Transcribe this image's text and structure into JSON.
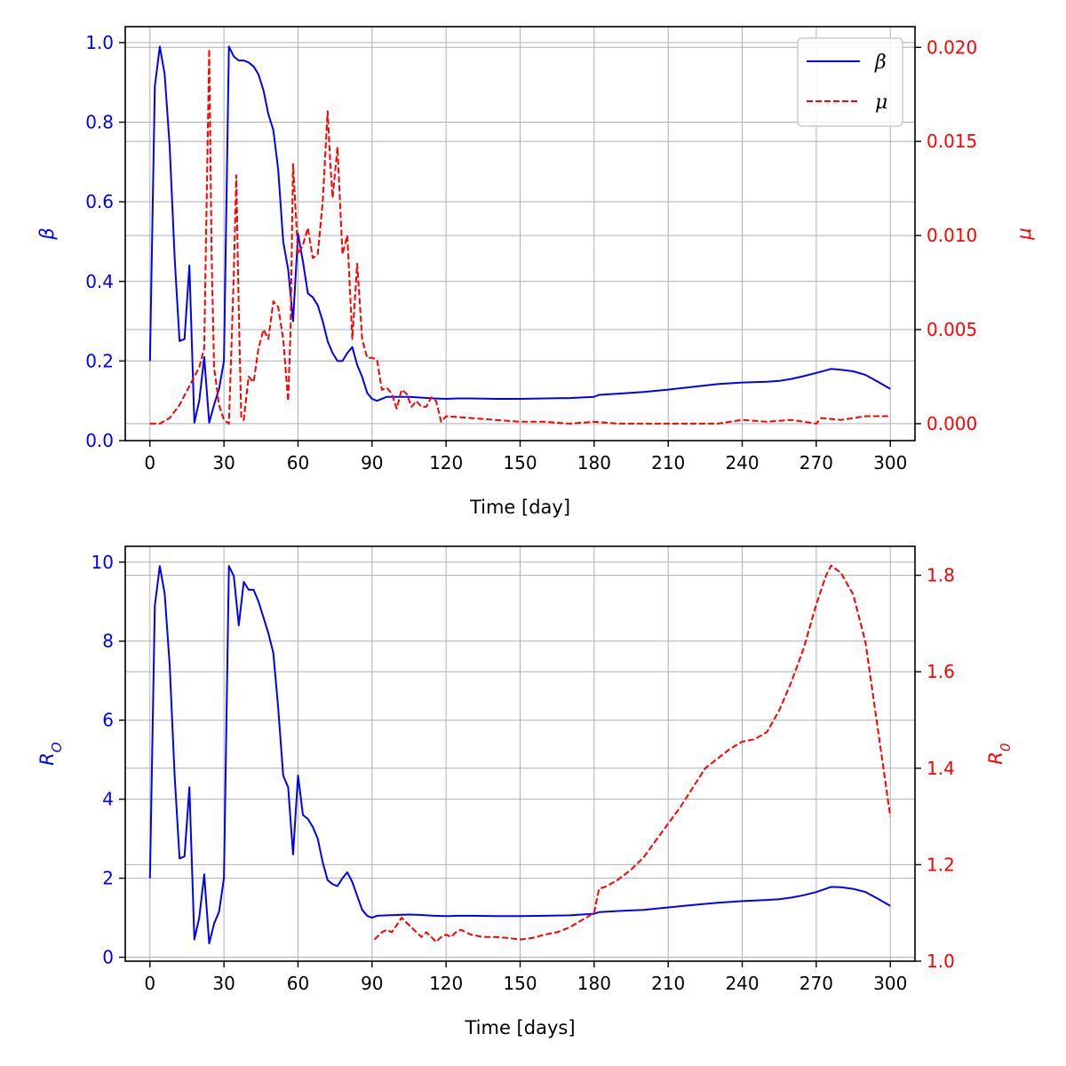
{
  "colors": {
    "left": "#0000ff",
    "right": "#ff0000",
    "grid": "#b0b0b0",
    "axis": "#000000"
  },
  "chart_data": [
    {
      "type": "line",
      "xlabel": "Time [day]",
      "ylabel_left": "β",
      "ylabel_right": "μ",
      "xlim": [
        -10,
        310
      ],
      "xticks": [
        0,
        30,
        60,
        90,
        120,
        150,
        180,
        210,
        240,
        270,
        300
      ],
      "ylim_left": [
        0,
        1.04
      ],
      "yticks_left": [
        0.0,
        0.2,
        0.4,
        0.6,
        0.8,
        1.0
      ],
      "ylim_right": [
        -0.0009,
        0.0211
      ],
      "yticks_right": [
        0.0,
        0.005,
        0.01,
        0.015,
        0.02
      ],
      "grid": true,
      "legend_position": "top-right",
      "series": [
        {
          "name": "β",
          "axis": "left",
          "style": "solid",
          "x": [
            0,
            2,
            4,
            6,
            8,
            10,
            12,
            14,
            16,
            18,
            20,
            22,
            24,
            26,
            28,
            30,
            32,
            34,
            36,
            38,
            40,
            42,
            44,
            46,
            48,
            50,
            52,
            54,
            56,
            58,
            60,
            62,
            64,
            66,
            68,
            70,
            72,
            74,
            76,
            78,
            80,
            82,
            84,
            86,
            88,
            90,
            92,
            96,
            100,
            105,
            110,
            115,
            120,
            125,
            130,
            140,
            150,
            160,
            170,
            180,
            182,
            190,
            200,
            210,
            220,
            230,
            240,
            250,
            255,
            260,
            265,
            270,
            276,
            280,
            285,
            290,
            295,
            300
          ],
          "y": [
            0.2,
            0.89,
            0.99,
            0.92,
            0.74,
            0.46,
            0.25,
            0.255,
            0.44,
            0.045,
            0.1,
            0.21,
            0.045,
            0.09,
            0.13,
            0.2,
            0.99,
            0.965,
            0.955,
            0.955,
            0.95,
            0.94,
            0.92,
            0.88,
            0.82,
            0.78,
            0.68,
            0.5,
            0.43,
            0.3,
            0.52,
            0.45,
            0.37,
            0.36,
            0.34,
            0.3,
            0.25,
            0.22,
            0.2,
            0.2,
            0.22,
            0.235,
            0.19,
            0.16,
            0.12,
            0.105,
            0.1,
            0.11,
            0.11,
            0.11,
            0.108,
            0.106,
            0.105,
            0.106,
            0.106,
            0.105,
            0.105,
            0.106,
            0.107,
            0.11,
            0.115,
            0.118,
            0.122,
            0.128,
            0.135,
            0.142,
            0.146,
            0.148,
            0.15,
            0.155,
            0.162,
            0.17,
            0.18,
            0.178,
            0.174,
            0.165,
            0.148,
            0.13
          ]
        },
        {
          "name": "μ",
          "axis": "right",
          "style": "dashed",
          "x": [
            0,
            4,
            8,
            12,
            16,
            20,
            22,
            23,
            24,
            25,
            26,
            28,
            30,
            32,
            33,
            34,
            35,
            36,
            37,
            38,
            40,
            42,
            44,
            46,
            48,
            50,
            52,
            54,
            56,
            57,
            58,
            60,
            62,
            64,
            66,
            68,
            70,
            72,
            73,
            74,
            76,
            78,
            80,
            82,
            84,
            86,
            88,
            90,
            92,
            94,
            96,
            98,
            100,
            102,
            104,
            106,
            108,
            110,
            112,
            114,
            116,
            118,
            120,
            130,
            140,
            150,
            160,
            170,
            180,
            190,
            200,
            210,
            220,
            230,
            240,
            250,
            260,
            270,
            272,
            280,
            290,
            300
          ],
          "y": [
            0.0,
            0.0,
            0.0003,
            0.001,
            0.002,
            0.003,
            0.004,
            0.012,
            0.0199,
            0.009,
            0.003,
            0.001,
            0.0002,
            0.0,
            0.004,
            0.008,
            0.0132,
            0.006,
            0.0003,
            0.0002,
            0.0025,
            0.0022,
            0.004,
            0.005,
            0.0045,
            0.0065,
            0.0062,
            0.0045,
            0.0012,
            0.005,
            0.0138,
            0.009,
            0.0095,
            0.0104,
            0.0088,
            0.009,
            0.0118,
            0.0166,
            0.014,
            0.012,
            0.0147,
            0.009,
            0.01,
            0.0045,
            0.0085,
            0.0045,
            0.0035,
            0.0035,
            0.0034,
            0.0018,
            0.0019,
            0.0016,
            0.0008,
            0.0018,
            0.0016,
            0.0009,
            0.0012,
            0.0009,
            0.0009,
            0.0014,
            0.0012,
            0.0001,
            0.0004,
            0.0003,
            0.0002,
            0.0001,
            0.0001,
            0.0,
            0.0001,
            0.0,
            0.0,
            0.0,
            0.0,
            0.0,
            0.0002,
            0.0001,
            0.0002,
            0.0,
            0.0003,
            0.0002,
            0.0004,
            0.0004
          ]
        }
      ]
    },
    {
      "type": "line",
      "xlabel": "Time [days]",
      "ylabel_left": "R_O",
      "ylabel_right": "R_0",
      "xlim": [
        -10,
        310
      ],
      "xticks": [
        0,
        30,
        60,
        90,
        120,
        150,
        180,
        210,
        240,
        270,
        300
      ],
      "ylim_left": [
        -0.1,
        10.4
      ],
      "yticks_left": [
        0,
        2,
        4,
        6,
        8,
        10
      ],
      "ylim_right": [
        1.0,
        1.86
      ],
      "yticks_right": [
        1.0,
        1.2,
        1.4,
        1.6,
        1.8
      ],
      "grid": true,
      "series": [
        {
          "name": "R_O",
          "axis": "left",
          "style": "solid",
          "x": [
            0,
            2,
            4,
            6,
            8,
            10,
            12,
            14,
            16,
            18,
            20,
            22,
            24,
            26,
            28,
            30,
            32,
            34,
            36,
            38,
            40,
            42,
            44,
            46,
            48,
            50,
            52,
            54,
            56,
            58,
            60,
            62,
            64,
            66,
            68,
            70,
            72,
            74,
            76,
            78,
            80,
            82,
            84,
            86,
            88,
            90,
            92,
            96,
            100,
            105,
            110,
            115,
            120,
            125,
            130,
            140,
            150,
            160,
            170,
            180,
            182,
            190,
            200,
            210,
            220,
            230,
            240,
            250,
            255,
            260,
            265,
            270,
            276,
            280,
            285,
            290,
            295,
            300
          ],
          "y": [
            2.0,
            8.9,
            9.9,
            9.2,
            7.4,
            4.6,
            2.5,
            2.55,
            4.3,
            0.45,
            1.0,
            2.1,
            0.35,
            0.85,
            1.15,
            2.0,
            9.9,
            9.65,
            8.4,
            9.5,
            9.3,
            9.3,
            9.0,
            8.6,
            8.2,
            7.7,
            6.3,
            4.6,
            4.3,
            2.6,
            4.6,
            3.6,
            3.5,
            3.3,
            3.0,
            2.4,
            1.95,
            1.85,
            1.8,
            2.0,
            2.15,
            1.9,
            1.55,
            1.2,
            1.05,
            1.0,
            1.05,
            1.06,
            1.07,
            1.08,
            1.07,
            1.05,
            1.04,
            1.05,
            1.05,
            1.04,
            1.04,
            1.05,
            1.06,
            1.1,
            1.14,
            1.17,
            1.2,
            1.26,
            1.32,
            1.38,
            1.42,
            1.45,
            1.47,
            1.51,
            1.57,
            1.65,
            1.78,
            1.77,
            1.73,
            1.65,
            1.48,
            1.3
          ]
        },
        {
          "name": "R_0",
          "axis": "right",
          "style": "dashed",
          "x": [
            91,
            94,
            96,
            98,
            100,
            102,
            104,
            106,
            108,
            110,
            112,
            114,
            116,
            118,
            120,
            122,
            124,
            126,
            128,
            130,
            135,
            140,
            145,
            150,
            155,
            160,
            165,
            170,
            175,
            180,
            182,
            185,
            190,
            195,
            200,
            205,
            210,
            215,
            220,
            225,
            230,
            235,
            240,
            245,
            250,
            255,
            260,
            265,
            270,
            274,
            276,
            280,
            285,
            290,
            295,
            300
          ],
          "y": [
            1.045,
            1.06,
            1.065,
            1.06,
            1.075,
            1.09,
            1.08,
            1.07,
            1.06,
            1.05,
            1.06,
            1.05,
            1.04,
            1.05,
            1.055,
            1.05,
            1.06,
            1.065,
            1.06,
            1.055,
            1.05,
            1.05,
            1.048,
            1.045,
            1.048,
            1.055,
            1.06,
            1.07,
            1.085,
            1.1,
            1.15,
            1.155,
            1.17,
            1.19,
            1.215,
            1.25,
            1.285,
            1.32,
            1.36,
            1.4,
            1.42,
            1.44,
            1.455,
            1.46,
            1.475,
            1.52,
            1.58,
            1.65,
            1.74,
            1.8,
            1.82,
            1.805,
            1.76,
            1.66,
            1.48,
            1.3
          ]
        }
      ]
    }
  ]
}
